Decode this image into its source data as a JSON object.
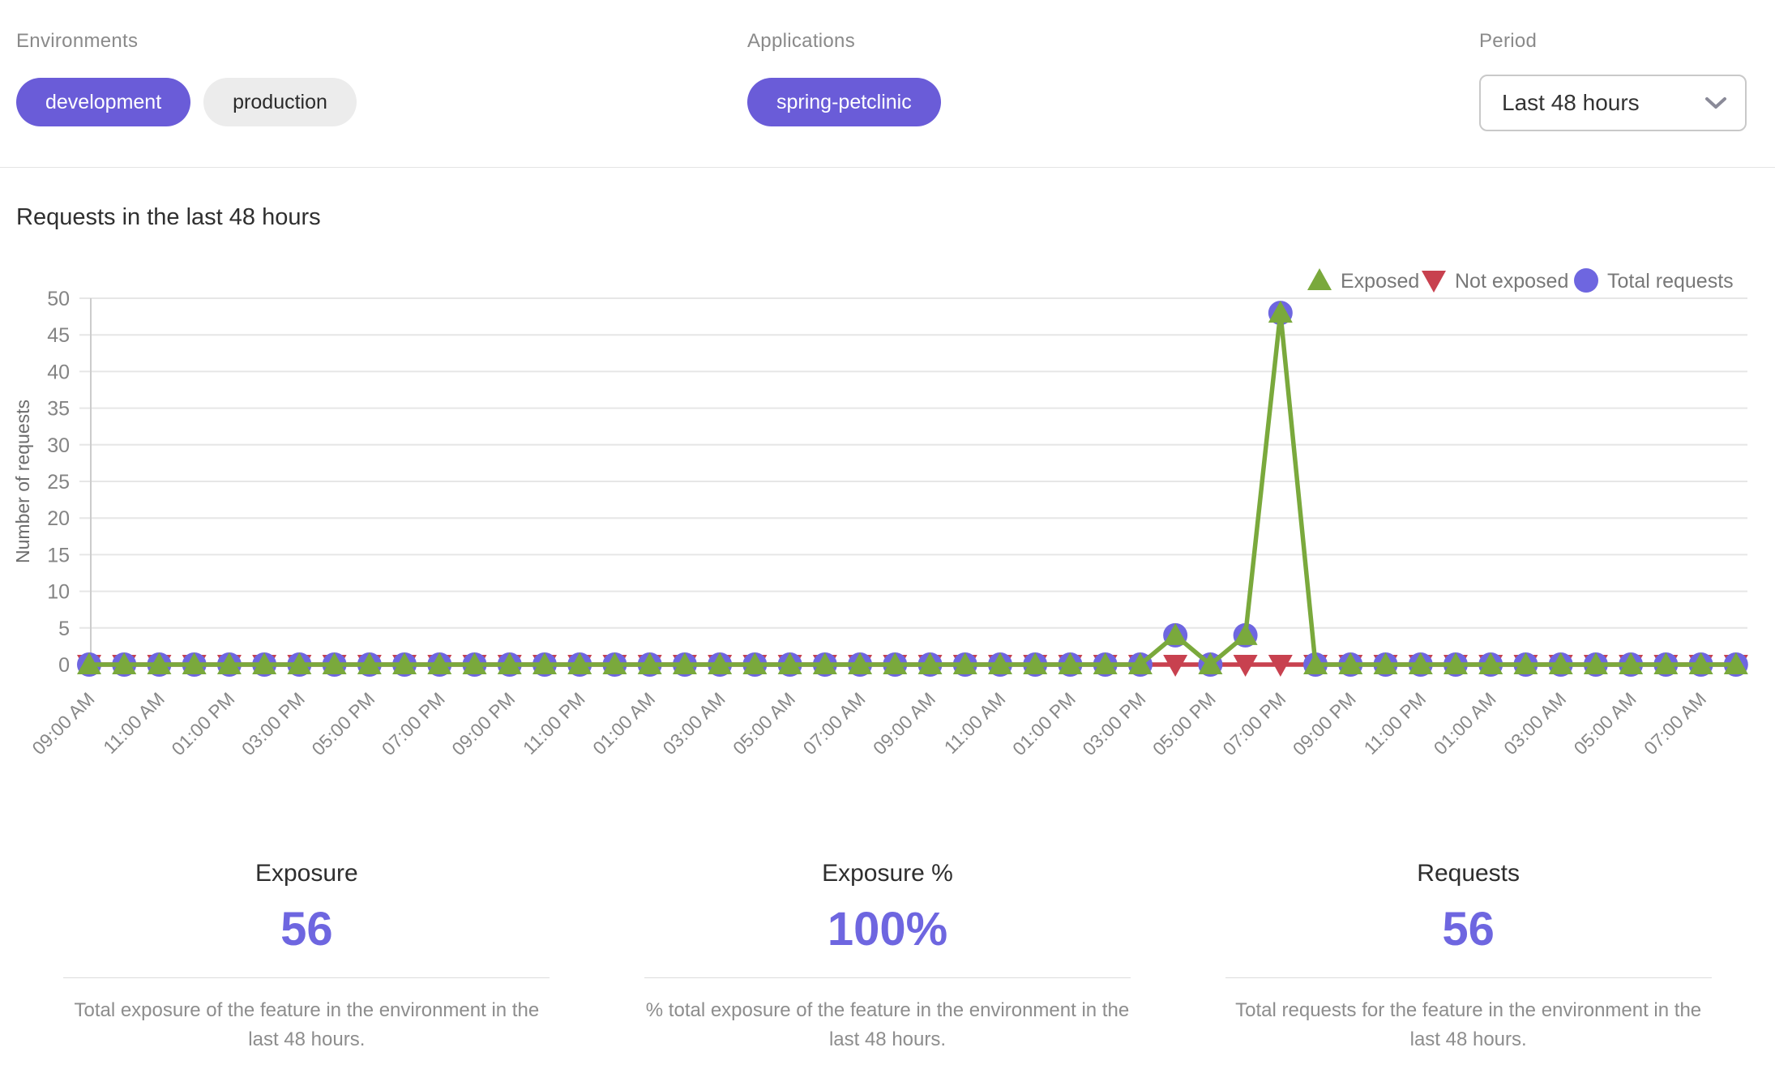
{
  "filters": {
    "environments": {
      "label": "Environments",
      "options": [
        {
          "label": "development",
          "selected": true
        },
        {
          "label": "production",
          "selected": false
        }
      ]
    },
    "applications": {
      "label": "Applications",
      "options": [
        {
          "label": "spring-petclinic",
          "selected": true
        }
      ]
    },
    "period": {
      "label": "Period",
      "value": "Last 48 hours"
    }
  },
  "chart_data": {
    "type": "line",
    "title": "Requests in the last 48 hours",
    "ylabel": "Number of requests",
    "ylim": [
      0,
      50
    ],
    "ytick_step": 5,
    "grid": true,
    "legend_position": "top-right",
    "x_points_per_label": 2,
    "x_tick_labels": [
      "09:00 AM",
      "11:00 AM",
      "01:00 PM",
      "03:00 PM",
      "05:00 PM",
      "07:00 PM",
      "09:00 PM",
      "11:00 PM",
      "01:00 AM",
      "03:00 AM",
      "05:00 AM",
      "07:00 AM",
      "09:00 AM",
      "11:00 AM",
      "01:00 PM",
      "03:00 PM",
      "05:00 PM",
      "07:00 PM",
      "09:00 PM",
      "11:00 PM",
      "01:00 AM",
      "03:00 AM",
      "05:00 AM",
      "07:00 AM"
    ],
    "series": [
      {
        "name": "Exposed",
        "marker": "triangle-up",
        "color": "#7aa93c",
        "values": [
          0,
          0,
          0,
          0,
          0,
          0,
          0,
          0,
          0,
          0,
          0,
          0,
          0,
          0,
          0,
          0,
          0,
          0,
          0,
          0,
          0,
          0,
          0,
          0,
          0,
          0,
          0,
          0,
          0,
          0,
          0,
          4,
          0,
          4,
          48,
          0,
          0,
          0,
          0,
          0,
          0,
          0,
          0,
          0,
          0,
          0,
          0,
          0
        ]
      },
      {
        "name": "Not exposed",
        "marker": "triangle-down",
        "color": "#c8414f",
        "values": [
          0,
          0,
          0,
          0,
          0,
          0,
          0,
          0,
          0,
          0,
          0,
          0,
          0,
          0,
          0,
          0,
          0,
          0,
          0,
          0,
          0,
          0,
          0,
          0,
          0,
          0,
          0,
          0,
          0,
          0,
          0,
          0,
          0,
          0,
          0,
          0,
          0,
          0,
          0,
          0,
          0,
          0,
          0,
          0,
          0,
          0,
          0,
          0
        ]
      },
      {
        "name": "Total requests",
        "marker": "circle",
        "color": "#6e66e0",
        "values": [
          0,
          0,
          0,
          0,
          0,
          0,
          0,
          0,
          0,
          0,
          0,
          0,
          0,
          0,
          0,
          0,
          0,
          0,
          0,
          0,
          0,
          0,
          0,
          0,
          0,
          0,
          0,
          0,
          0,
          0,
          0,
          4,
          0,
          4,
          48,
          0,
          0,
          0,
          0,
          0,
          0,
          0,
          0,
          0,
          0,
          0,
          0,
          0
        ]
      }
    ]
  },
  "stats": [
    {
      "title": "Exposure",
      "value": "56",
      "description": "Total exposure of the feature in the environment in the last 48 hours."
    },
    {
      "title": "Exposure %",
      "value": "100%",
      "description": "% total exposure of the feature in the environment in the last 48 hours."
    },
    {
      "title": "Requests",
      "value": "56",
      "description": "Total requests for the feature in the environment in the last 48 hours."
    }
  ],
  "colors": {
    "accent_pill": "#6a5cd8",
    "chart_purple": "#6e66e0",
    "green": "#7aa93c",
    "red": "#c8414f",
    "grid": "#e6e6e6",
    "axis_line": "#cccccc"
  }
}
